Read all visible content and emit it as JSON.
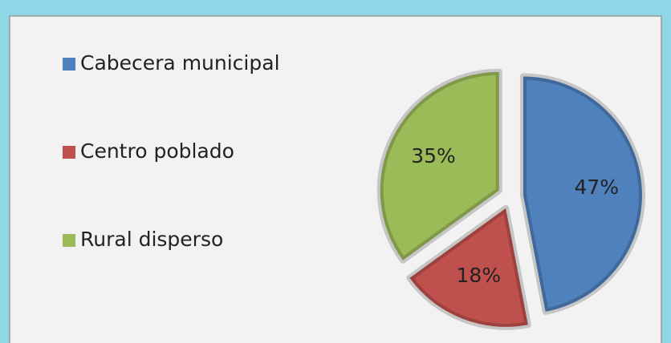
{
  "chart_data": {
    "type": "pie",
    "categories": [
      "Cabecera municipal",
      "Centro poblado",
      "Rural disperso"
    ],
    "values": [
      47,
      18,
      35
    ],
    "value_labels": [
      "47%",
      "18%",
      "35%"
    ],
    "colors": [
      "#4f81bd",
      "#c0504d",
      "#9bbb59"
    ],
    "legend": "left",
    "exploded": true
  }
}
